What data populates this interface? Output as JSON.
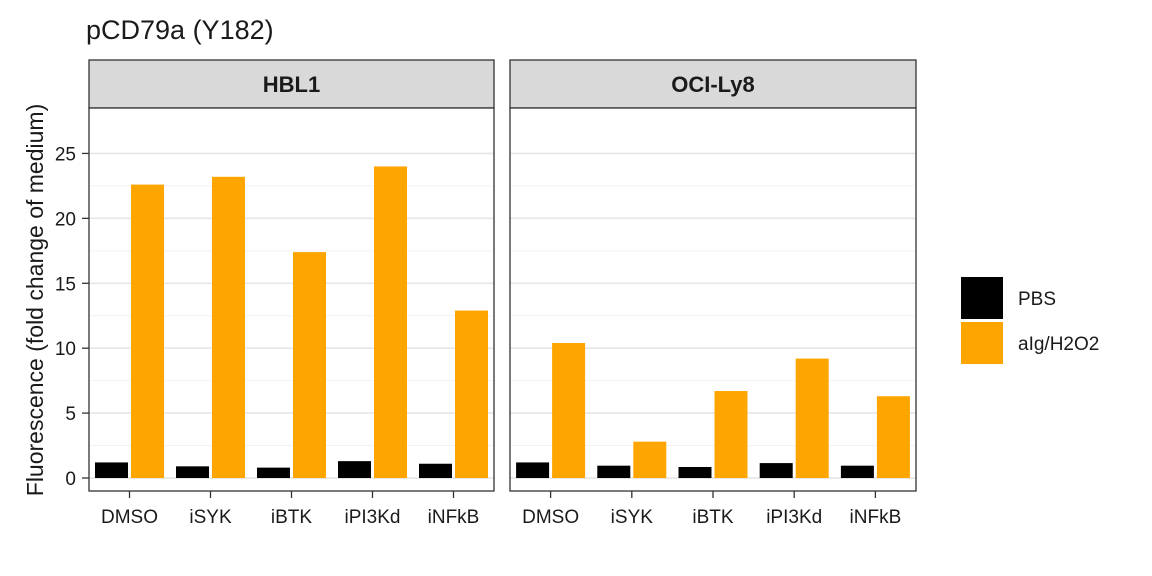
{
  "chart_data": {
    "type": "bar",
    "title": "pCD79a (Y182)",
    "xlabel": "",
    "ylabel": "Fluorescence (fold change of medium)",
    "ylim": [
      -1.0,
      28.5
    ],
    "yticks": [
      0,
      5,
      10,
      15,
      20,
      25
    ],
    "grid": true,
    "legend_position": "right",
    "categories": [
      "DMSO",
      "iSYK",
      "iBTK",
      "iPI3Kd",
      "iNFkB"
    ],
    "series_meta": [
      {
        "name": "PBS",
        "color": "#000000"
      },
      {
        "name": "aIg/H2O2",
        "color": "#FFA500"
      }
    ],
    "panels": [
      {
        "label": "HBL1",
        "series": [
          {
            "name": "PBS",
            "values": [
              1.2,
              0.9,
              0.8,
              1.3,
              1.1
            ]
          },
          {
            "name": "aIg/H2O2",
            "values": [
              22.6,
              23.2,
              17.4,
              24.0,
              12.9
            ]
          }
        ]
      },
      {
        "label": "OCI-Ly8",
        "series": [
          {
            "name": "PBS",
            "values": [
              1.2,
              0.95,
              0.85,
              1.15,
              0.95
            ]
          },
          {
            "name": "aIg/H2O2",
            "values": [
              10.4,
              2.8,
              6.7,
              9.2,
              6.3
            ]
          }
        ]
      }
    ]
  }
}
